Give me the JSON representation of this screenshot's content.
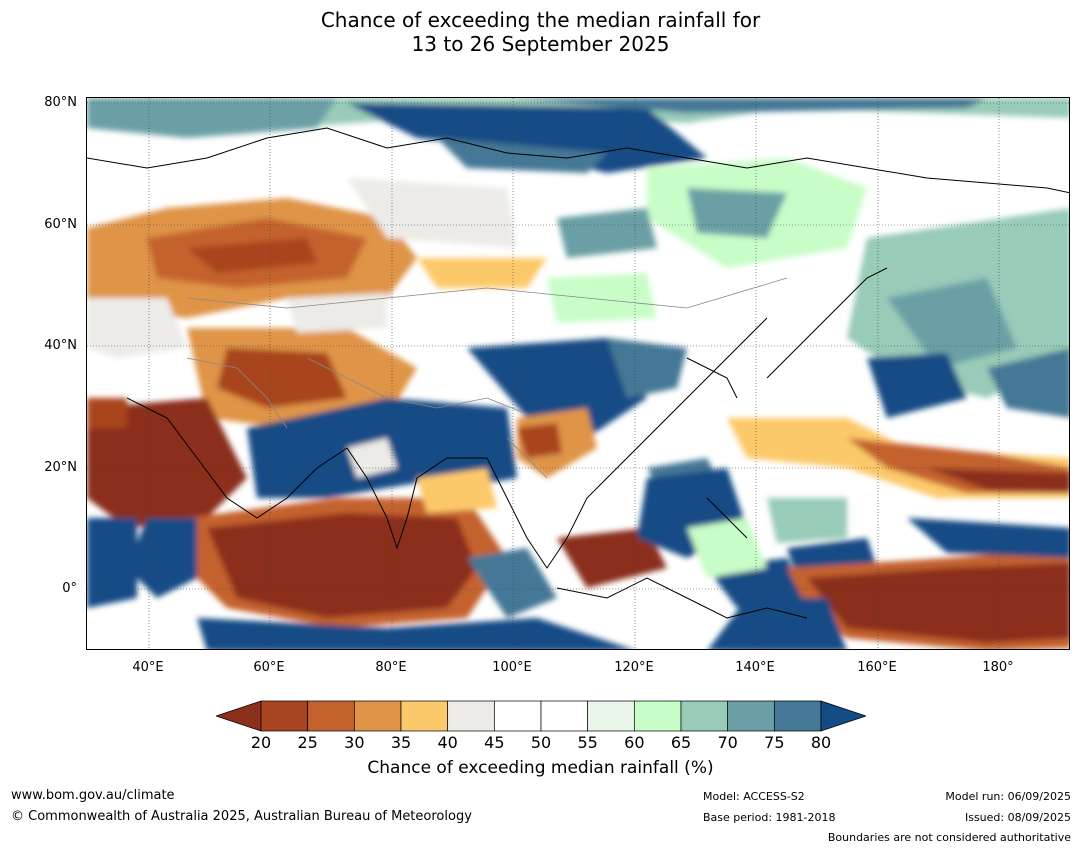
{
  "title_line1": "Chance of exceeding the median rainfall for",
  "title_line2": "13 to 26 September 2025",
  "latitude_labels": [
    "80°N",
    "60°N",
    "40°N",
    "20°N",
    "0°"
  ],
  "longitude_labels": [
    "40°E",
    "60°E",
    "80°E",
    "100°E",
    "120°E",
    "140°E",
    "160°E",
    "180°"
  ],
  "colorbar": {
    "ticks": [
      "20",
      "25",
      "30",
      "35",
      "40",
      "45",
      "50",
      "55",
      "60",
      "65",
      "70",
      "75",
      "80"
    ],
    "colors": [
      "#8b2f1c",
      "#a8441f",
      "#c4622e",
      "#df9447",
      "#fcc96a",
      "#ecebe7",
      "#ffffff",
      "#ffffff",
      "#e9f5e9",
      "#c8fdc8",
      "#98cbb8",
      "#6aa0a5",
      "#457896",
      "#134b85"
    ],
    "label": "Chance of exceeding median rainfall (%)"
  },
  "footer": {
    "website": "www.bom.gov.au/climate",
    "copyright": "© Commonwealth of Australia 2025, Australian Bureau of Meteorology",
    "model": "Model: ACCESS-S2",
    "base_period": "Base period: 1981-2018",
    "model_run": "Model run: 06/09/2025",
    "issued": "Issued: 08/09/2025",
    "disclaimer": "Boundaries are not considered authoritative"
  }
}
